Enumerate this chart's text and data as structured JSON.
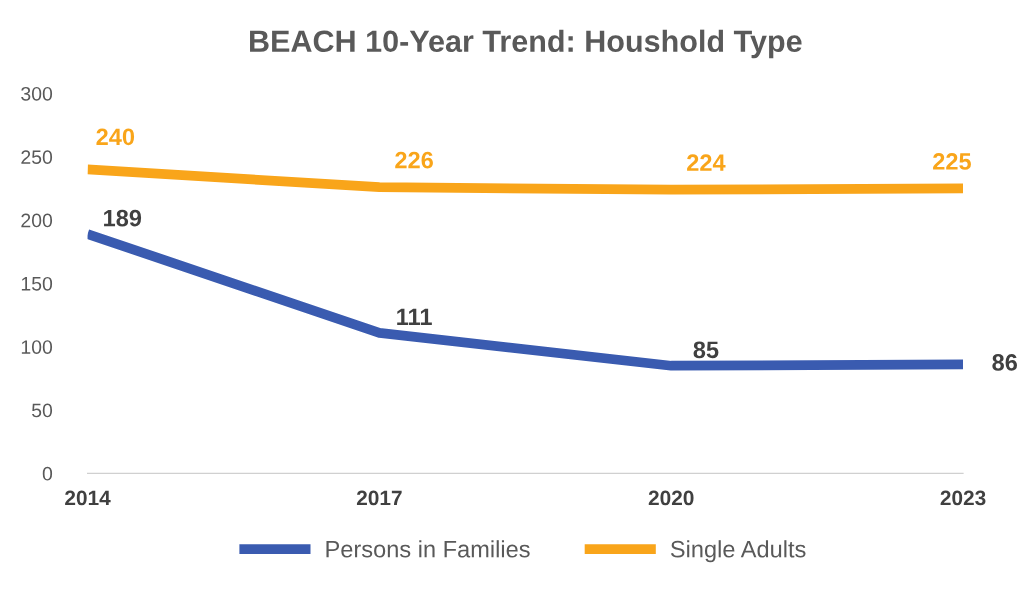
{
  "chart_data": {
    "type": "line",
    "title": "BEACH 10-Year Trend: Houshold Type",
    "categories": [
      "2014",
      "2017",
      "2020",
      "2023"
    ],
    "series": [
      {
        "name": "Persons in Families",
        "color": "#3a5bb0",
        "values": [
          189,
          111,
          85,
          86
        ]
      },
      {
        "name": "Single Adults",
        "color": "#f9a51a",
        "values": [
          240,
          226,
          224,
          225
        ]
      }
    ],
    "ylim": [
      0,
      300
    ],
    "yticks": [
      0,
      50,
      100,
      150,
      200,
      250,
      300
    ],
    "grid": false,
    "legend": "bottom",
    "data_labels": true,
    "marker": "none",
    "line_style": "solid"
  }
}
